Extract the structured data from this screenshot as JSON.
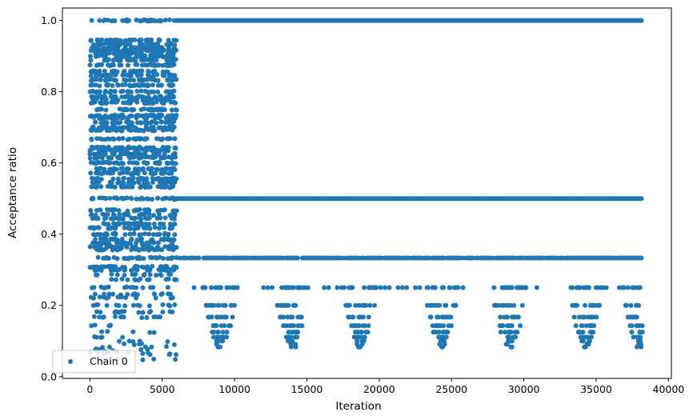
{
  "chart_data": {
    "type": "scatter",
    "title": "",
    "xlabel": "Iteration",
    "ylabel": "Acceptance ratio",
    "xlim": [
      -1900,
      40200
    ],
    "ylim": [
      -0.005,
      1.035
    ],
    "xticks": [
      0,
      5000,
      10000,
      15000,
      20000,
      25000,
      30000,
      35000,
      40000
    ],
    "xtick_labels": [
      "0",
      "5000",
      "10000",
      "15000",
      "20000",
      "25000",
      "30000",
      "35000",
      "40000"
    ],
    "yticks": [
      0.0,
      0.2,
      0.4,
      0.6,
      0.8,
      1.0
    ],
    "ytick_labels": [
      "0.0",
      "0.2",
      "0.4",
      "0.6",
      "0.8",
      "1.0"
    ],
    "grid": false,
    "legend": {
      "position": "lower-left",
      "entries": [
        "Chain 0"
      ]
    },
    "color": "#1f77b4",
    "series": [
      {
        "name": "Chain 0",
        "phases": [
          {
            "x_range": [
              0,
              6000
            ],
            "levels": [
              1.0,
              0.944,
              0.933,
              0.923,
              0.917,
              0.909,
              0.9,
              0.889,
              0.875,
              0.857,
              0.846,
              0.833,
              0.818,
              0.8,
              0.786,
              0.778,
              0.769,
              0.75,
              0.733,
              0.727,
              0.714,
              0.7,
              0.692,
              0.667,
              0.643,
              0.636,
              0.625,
              0.615,
              0.6,
              0.583,
              0.571,
              0.556,
              0.545,
              0.533,
              0.5,
              0.467,
              0.455,
              0.444,
              0.429,
              0.417,
              0.4,
              0.385,
              0.375,
              0.364,
              0.357,
              0.333,
              0.308,
              0.3,
              0.286,
              0.273,
              0.25,
              0.231,
              0.222,
              0.2,
              0.182,
              0.167,
              0.143,
              0.125,
              0.111,
              0.1,
              0.091,
              0.083,
              0.077,
              0.071,
              0.067,
              0.063,
              0.048
            ]
          },
          {
            "x_range": [
              6000,
              38200
            ],
            "levels": [
              1.0,
              0.5,
              0.333,
              0.25,
              0.2,
              0.167,
              0.143,
              0.125,
              0.111,
              0.1,
              0.091,
              0.083
            ]
          }
        ]
      }
    ]
  }
}
